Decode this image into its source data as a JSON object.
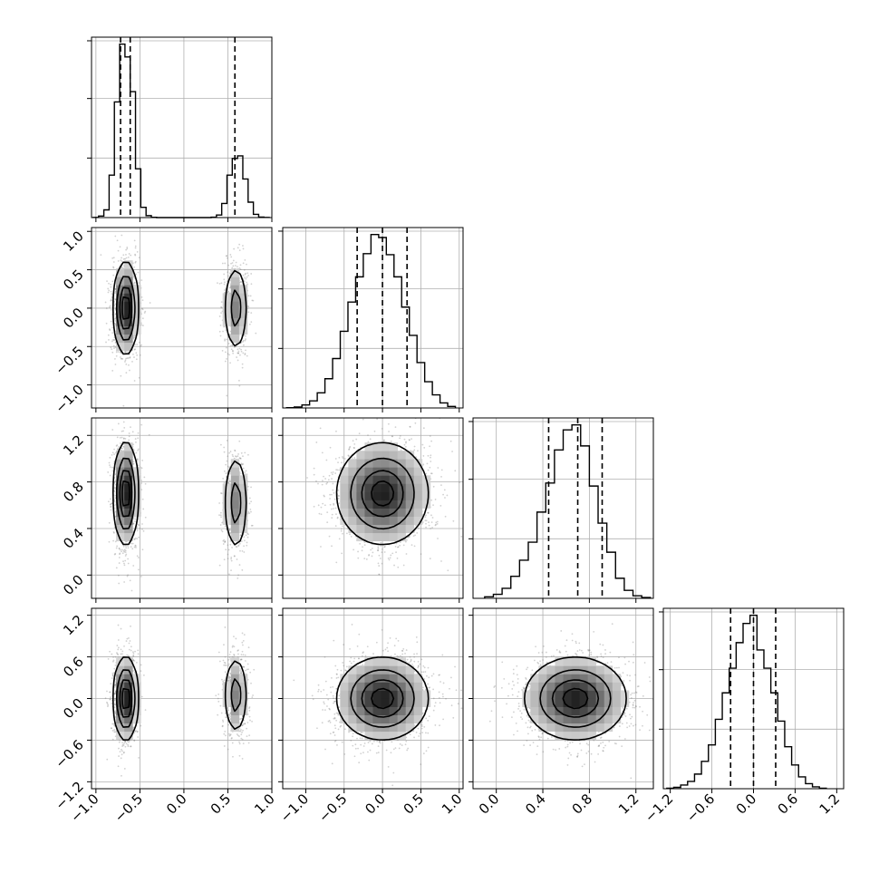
{
  "chart_data": {
    "type": "corner",
    "n_params": 4,
    "grid": true,
    "colors": {
      "line": "#000000",
      "grid": "#b0b0b0",
      "points": "#7a7a7a",
      "density_dark": "#1a1a1a"
    },
    "axis_ranges": [
      [
        -1.05,
        1.0
      ],
      [
        -1.3,
        1.05
      ],
      [
        -0.2,
        1.35
      ],
      [
        -1.3,
        1.3
      ]
    ],
    "ticks": [
      [
        -1.0,
        -0.5,
        0.0,
        0.5,
        1.0
      ],
      [
        -1.0,
        -0.5,
        0.0,
        0.5,
        1.0
      ],
      [
        0.0,
        0.4,
        0.8,
        1.2
      ],
      [
        -1.2,
        -0.6,
        0.0,
        0.6,
        1.2
      ]
    ],
    "tick_labels": [
      [
        "−1.0",
        "−0.5",
        "0.0",
        "0.5",
        "1.0"
      ],
      [
        "−1.0",
        "−0.5",
        "0.0",
        "0.5",
        "1.0"
      ],
      [
        "0.0",
        "0.4",
        "0.8",
        "1.2"
      ],
      [
        "−1.2",
        "−0.6",
        "0.0",
        "0.6",
        "1.2"
      ]
    ],
    "quantiles": [
      [
        -0.72,
        -0.61,
        0.58
      ],
      [
        -0.33,
        0.0,
        0.32
      ],
      [
        0.45,
        0.7,
        0.91
      ],
      [
        -0.33,
        0.0,
        0.32
      ]
    ],
    "histograms": [
      {
        "param": 0,
        "bin_edges": [
          -1.03,
          -0.97,
          -0.91,
          -0.85,
          -0.79,
          -0.73,
          -0.67,
          -0.61,
          -0.55,
          -0.49,
          -0.43,
          -0.37,
          -0.31,
          0.31,
          0.37,
          0.43,
          0.49,
          0.55,
          0.61,
          0.67,
          0.73,
          0.79,
          0.85,
          0.91,
          0.97
        ],
        "counts": [
          1,
          12,
          60,
          330,
          900,
          1350,
          1250,
          980,
          380,
          80,
          15,
          2,
          0,
          3,
          20,
          110,
          330,
          460,
          480,
          300,
          120,
          25,
          4,
          1
        ]
      },
      {
        "param": 1,
        "bin_edges": [
          -1.25,
          -1.15,
          -1.05,
          -0.95,
          -0.85,
          -0.75,
          -0.65,
          -0.55,
          -0.45,
          -0.35,
          -0.25,
          -0.15,
          -0.05,
          0.05,
          0.15,
          0.25,
          0.35,
          0.45,
          0.55,
          0.65,
          0.75,
          0.85,
          0.95
        ],
        "counts": [
          3,
          10,
          30,
          70,
          150,
          290,
          490,
          760,
          1050,
          1300,
          1530,
          1720,
          1690,
          1520,
          1300,
          1000,
          720,
          450,
          260,
          130,
          50,
          15
        ]
      },
      {
        "param": 2,
        "bin_edges": [
          -0.1,
          -0.025,
          0.05,
          0.125,
          0.2,
          0.275,
          0.35,
          0.425,
          0.5,
          0.575,
          0.65,
          0.725,
          0.8,
          0.875,
          0.95,
          1.025,
          1.1,
          1.175,
          1.25,
          1.325
        ],
        "counts": [
          15,
          40,
          100,
          220,
          380,
          560,
          860,
          1150,
          1480,
          1680,
          1730,
          1520,
          1120,
          750,
          460,
          200,
          80,
          25,
          8
        ]
      },
      {
        "param": 3,
        "bin_edges": [
          -1.25,
          -1.15,
          -1.05,
          -0.95,
          -0.85,
          -0.75,
          -0.65,
          -0.55,
          -0.45,
          -0.35,
          -0.25,
          -0.15,
          -0.05,
          0.05,
          0.15,
          0.25,
          0.35,
          0.45,
          0.55,
          0.65,
          0.75,
          0.85,
          0.95,
          1.05
        ],
        "counts": [
          5,
          15,
          40,
          80,
          160,
          300,
          480,
          760,
          1050,
          1320,
          1600,
          1810,
          1900,
          1520,
          1320,
          1050,
          740,
          460,
          260,
          130,
          55,
          20,
          5
        ]
      }
    ],
    "pairs": [
      {
        "x": 0,
        "y": 1,
        "modes": [
          {
            "cx": -0.66,
            "cy": 0.0,
            "sx": 0.07,
            "sy": 0.3,
            "w": 0.67
          },
          {
            "cx": 0.59,
            "cy": 0.0,
            "sx": 0.07,
            "sy": 0.3,
            "w": 0.33
          }
        ]
      },
      {
        "x": 0,
        "y": 2,
        "modes": [
          {
            "cx": -0.66,
            "cy": 0.7,
            "sx": 0.07,
            "sy": 0.22,
            "w": 0.67
          },
          {
            "cx": 0.59,
            "cy": 0.62,
            "sx": 0.07,
            "sy": 0.22,
            "w": 0.33
          }
        ]
      },
      {
        "x": 0,
        "y": 3,
        "modes": [
          {
            "cx": -0.66,
            "cy": 0.0,
            "sx": 0.07,
            "sy": 0.3,
            "w": 0.67
          },
          {
            "cx": 0.59,
            "cy": 0.05,
            "sx": 0.07,
            "sy": 0.3,
            "w": 0.33
          }
        ]
      },
      {
        "x": 1,
        "y": 2,
        "modes": [
          {
            "cx": 0.0,
            "cy": 0.7,
            "sx": 0.3,
            "sy": 0.22,
            "w": 1.0
          }
        ]
      },
      {
        "x": 1,
        "y": 3,
        "modes": [
          {
            "cx": 0.0,
            "cy": 0.0,
            "sx": 0.3,
            "sy": 0.3,
            "w": 1.0
          }
        ]
      },
      {
        "x": 2,
        "y": 3,
        "modes": [
          {
            "cx": 0.68,
            "cy": 0.0,
            "sx": 0.22,
            "sy": 0.3,
            "w": 1.0
          }
        ]
      }
    ]
  }
}
